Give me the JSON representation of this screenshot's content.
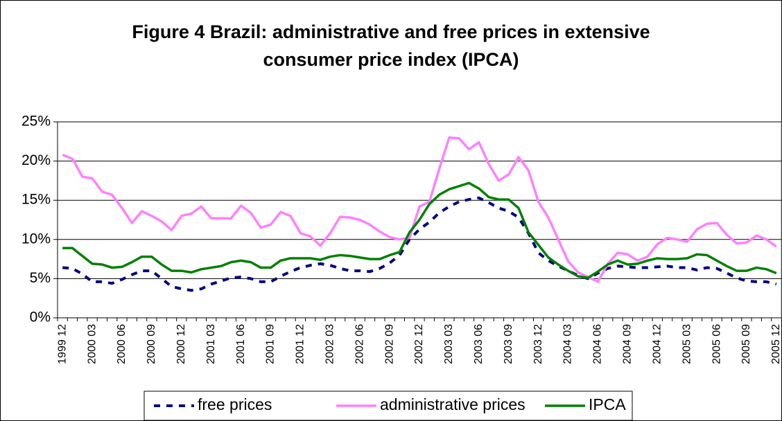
{
  "chart_data": {
    "type": "line",
    "title": "Figure 4 Brazil: administrative and free prices in extensive consumer price index (IPCA)",
    "categories": [
      "1999 12",
      null,
      null,
      "2000 03",
      null,
      null,
      "2000 06",
      null,
      null,
      "2000 09",
      null,
      null,
      "2000 12",
      null,
      null,
      "2001 03",
      null,
      null,
      "2001 06",
      null,
      null,
      "2001 09",
      null,
      null,
      "2001 12",
      null,
      null,
      "2002 03",
      null,
      null,
      "2002 06",
      null,
      null,
      "2002 09",
      null,
      null,
      "2002 12",
      null,
      null,
      "2003 03",
      null,
      null,
      "2003 06",
      null,
      null,
      "2003 09",
      null,
      null,
      "2003 12",
      null,
      null,
      "2004 03",
      null,
      null,
      "2004 06",
      null,
      null,
      "2004 09",
      null,
      null,
      "2004 12",
      null,
      null,
      "2005 03",
      null,
      null,
      "2005 06",
      null,
      null,
      "2005 09",
      null,
      null,
      "2005 12"
    ],
    "series": [
      {
        "name": "free prices",
        "color": "#000080",
        "dashed": true,
        "values": [
          6.4,
          6.3,
          5.6,
          4.6,
          4.6,
          4.4,
          4.9,
          5.5,
          6.0,
          6.0,
          5.0,
          4.0,
          3.7,
          3.5,
          3.7,
          4.3,
          4.7,
          5.1,
          5.2,
          5.0,
          4.6,
          4.6,
          5.3,
          5.9,
          6.4,
          6.7,
          6.9,
          6.7,
          6.3,
          6.0,
          6.0,
          5.9,
          6.3,
          7.0,
          8.0,
          10.0,
          11.3,
          12.2,
          13.4,
          14.2,
          14.8,
          15.1,
          15.3,
          14.7,
          14.0,
          13.6,
          12.8,
          10.8,
          8.3,
          7.3,
          6.6,
          6.0,
          5.4,
          5.0,
          5.7,
          6.3,
          6.6,
          6.5,
          6.4,
          6.4,
          6.5,
          6.6,
          6.4,
          6.4,
          6.1,
          6.4,
          6.3,
          5.7,
          5.1,
          4.7,
          4.6,
          4.6,
          4.3
        ]
      },
      {
        "name": "administrative prices",
        "color": "#ff80ff",
        "dashed": false,
        "values": [
          20.8,
          20.3,
          18.0,
          17.8,
          16.1,
          15.7,
          14.0,
          12.1,
          13.6,
          13.0,
          12.3,
          11.2,
          13.0,
          13.3,
          14.2,
          12.7,
          12.7,
          12.7,
          14.3,
          13.4,
          11.5,
          11.9,
          13.5,
          13.0,
          10.8,
          10.4,
          9.2,
          10.8,
          12.9,
          12.8,
          12.5,
          11.9,
          11.0,
          10.3,
          10.0,
          10.2,
          14.2,
          14.8,
          19.0,
          23.0,
          22.9,
          21.5,
          22.4,
          19.6,
          17.5,
          18.3,
          20.5,
          18.8,
          14.8,
          12.8,
          10.0,
          7.2,
          5.8,
          5.2,
          4.6,
          6.9,
          8.3,
          8.1,
          7.3,
          7.8,
          9.4,
          10.2,
          10.0,
          9.7,
          11.3,
          12.0,
          12.1,
          10.6,
          9.5,
          9.6,
          10.5,
          10.0,
          9.1
        ]
      },
      {
        "name": "IPCA",
        "color": "#008000",
        "dashed": false,
        "values": [
          8.9,
          8.9,
          7.9,
          6.9,
          6.8,
          6.4,
          6.5,
          7.1,
          7.8,
          7.8,
          6.8,
          6.0,
          6.0,
          5.8,
          6.2,
          6.4,
          6.6,
          7.1,
          7.3,
          7.1,
          6.4,
          6.4,
          7.3,
          7.6,
          7.6,
          7.6,
          7.4,
          7.8,
          8.0,
          7.9,
          7.7,
          7.5,
          7.5,
          8.0,
          8.4,
          10.9,
          12.5,
          14.5,
          15.7,
          16.4,
          16.8,
          17.2,
          16.5,
          15.4,
          15.1,
          15.1,
          14.0,
          10.9,
          9.3,
          7.7,
          6.8,
          6.0,
          5.3,
          5.1,
          5.9,
          6.8,
          7.3,
          6.8,
          6.9,
          7.3,
          7.6,
          7.5,
          7.5,
          7.6,
          8.1,
          8.0,
          7.3,
          6.6,
          6.0,
          6.0,
          6.4,
          6.2,
          5.7
        ]
      }
    ],
    "ylim": [
      0,
      25
    ],
    "yticks": [
      {
        "value": 0,
        "label": "0%"
      },
      {
        "value": 5,
        "label": "5%"
      },
      {
        "value": 10,
        "label": "10%"
      },
      {
        "value": 15,
        "label": "15%"
      },
      {
        "value": 20,
        "label": "20%"
      },
      {
        "value": 25,
        "label": "25%"
      }
    ],
    "grid": true,
    "legend": "bottom"
  }
}
